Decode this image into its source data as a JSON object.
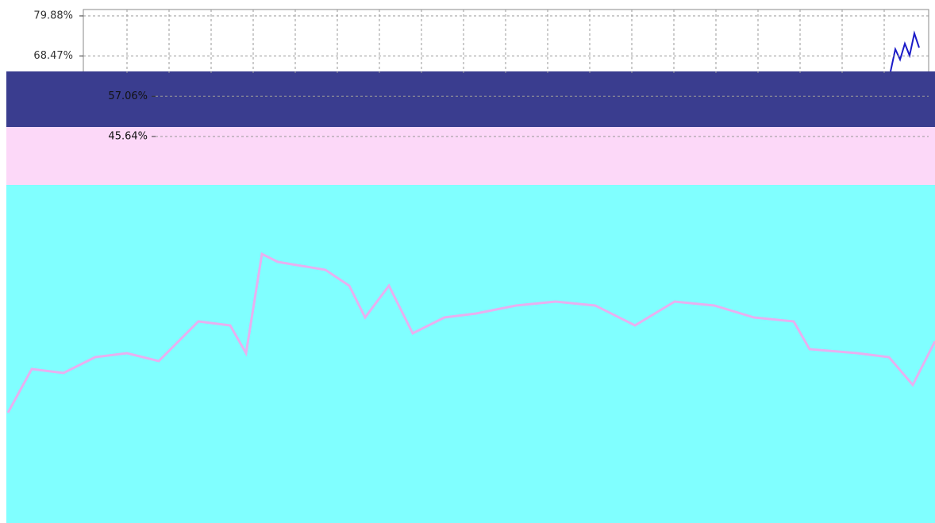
{
  "chart_data": {
    "type": "line",
    "ylim": [
      45.64,
      79.88
    ],
    "yticks": [
      {
        "value": 79.88,
        "label": "79.88%"
      },
      {
        "value": 68.47,
        "label": "68.47%"
      },
      {
        "value": 57.06,
        "label": "57.06%"
      },
      {
        "value": 45.64,
        "label": "45.64%"
      }
    ],
    "grid": true
  }
}
